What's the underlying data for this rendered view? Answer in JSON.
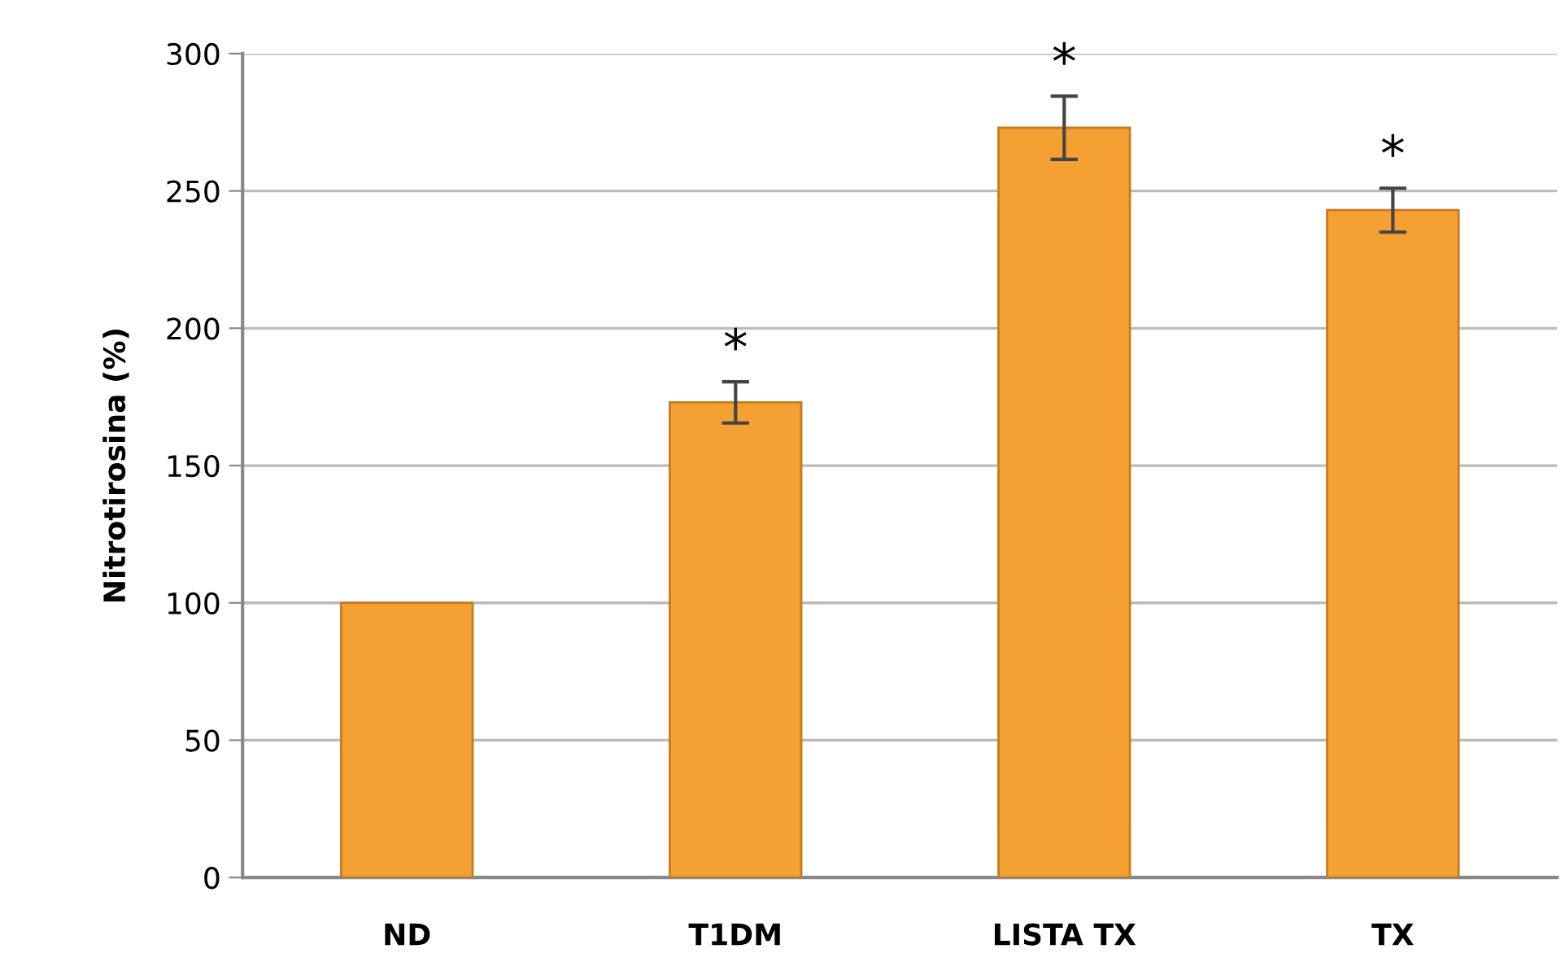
{
  "chart_data": {
    "type": "bar",
    "ylabel": "Nitrotirosina (%)",
    "categories": [
      "ND",
      "T1DM",
      "LISTA TX",
      "TX"
    ],
    "values": [
      100,
      173,
      273,
      243
    ],
    "errors": [
      null,
      7.5,
      11.5,
      8
    ],
    "color": "#f5a033",
    "ylim": [
      0,
      300
    ],
    "yticks": [
      0,
      50,
      100,
      150,
      200,
      250,
      300
    ],
    "grid": "y",
    "legend": false,
    "annotations": [
      "*",
      "*",
      "*"
    ]
  }
}
